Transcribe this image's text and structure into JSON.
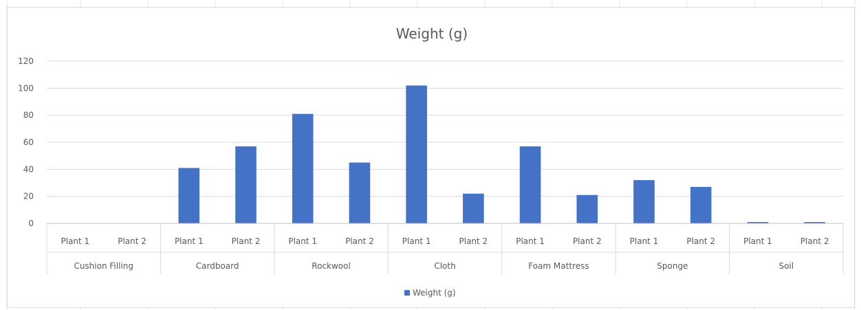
{
  "chart_data": {
    "type": "bar",
    "title": "Weight (g)",
    "xlabel": "",
    "ylabel": "",
    "ylim": [
      0,
      120
    ],
    "yticks": [
      "0",
      "20",
      "40",
      "60",
      "80",
      "100",
      "120"
    ],
    "grid": true,
    "legend_position": "bottom",
    "groups": [
      {
        "name": "Cushion Filling",
        "categories": [
          "Plant 1",
          "Plant 2"
        ]
      },
      {
        "name": "Cardboard",
        "categories": [
          "Plant 1",
          "Plant 2"
        ]
      },
      {
        "name": "Rockwool",
        "categories": [
          "Plant 1",
          "Plant 2"
        ]
      },
      {
        "name": "Cloth",
        "categories": [
          "Plant 1",
          "Plant 2"
        ]
      },
      {
        "name": "Foam Mattress",
        "categories": [
          "Plant 1",
          "Plant 2"
        ]
      },
      {
        "name": "Sponge",
        "categories": [
          "Plant 1",
          "Plant 2"
        ]
      },
      {
        "name": "Soil",
        "categories": [
          "Plant 1",
          "Plant 2"
        ]
      }
    ],
    "series": [
      {
        "name": "Weight (g)",
        "color": "#4472c4",
        "values": [
          0,
          0,
          41,
          57,
          81,
          45,
          102,
          22,
          57,
          21,
          32,
          27,
          1,
          1
        ]
      }
    ]
  }
}
